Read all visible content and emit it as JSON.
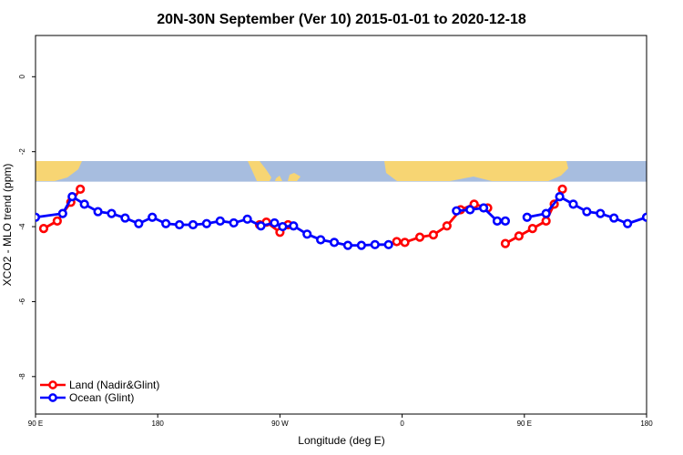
{
  "chart_data": {
    "type": "line",
    "title": "20N-30N September (Ver 10)   2015-01-01 to 2020-12-18",
    "xlabel": "Longitude (deg E)",
    "ylabel": "XCO2 - MLO trend (ppm)",
    "xlim": [
      90,
      540
    ],
    "ylim": [
      -9,
      1.1
    ],
    "x_ticks": [
      {
        "value": 90,
        "label": "90 E"
      },
      {
        "value": 180,
        "label": "180"
      },
      {
        "value": 270,
        "label": "90 W"
      },
      {
        "value": 360,
        "label": "0"
      },
      {
        "value": 450,
        "label": "90 E"
      },
      {
        "value": 540,
        "label": "180"
      }
    ],
    "y_ticks": [
      {
        "value": 0,
        "label": "0"
      },
      {
        "value": -2,
        "label": "-2"
      },
      {
        "value": -4,
        "label": "-4"
      },
      {
        "value": -6,
        "label": "-6"
      },
      {
        "value": -8,
        "label": "-8"
      }
    ],
    "legend_position": "bottom-left",
    "map_strip": {
      "y_top": -2.25,
      "y_bottom": -2.8,
      "ocean_color": "#a7bddf",
      "land_color": "#f7d573"
    },
    "series": [
      {
        "name": "Land (Nadir&Glint)",
        "color": "#ff0000",
        "segments": [
          [
            [
              96,
              -4.05
            ],
            [
              106,
              -3.85
            ],
            [
              116,
              -3.35
            ],
            [
              123,
              -3.0
            ]
          ],
          [
            [
              255,
              -3.95
            ],
            [
              260,
              -3.88
            ],
            [
              270,
              -4.15
            ],
            [
              276,
              -3.95
            ]
          ],
          [
            [
              356,
              -4.4
            ],
            [
              362,
              -4.42
            ],
            [
              373,
              -4.28
            ],
            [
              383,
              -4.22
            ],
            [
              393,
              -3.98
            ],
            [
              403,
              -3.55
            ],
            [
              413,
              -3.4
            ],
            [
              423,
              -3.5
            ]
          ],
          [
            [
              436,
              -4.45
            ],
            [
              446,
              -4.25
            ],
            [
              456,
              -4.05
            ],
            [
              466,
              -3.85
            ],
            [
              472,
              -3.4
            ],
            [
              478,
              -3.0
            ]
          ]
        ]
      },
      {
        "name": "Ocean (Glint)",
        "color": "#0000ff",
        "segments": [
          [
            [
              90,
              -3.75
            ],
            [
              110,
              -3.65
            ],
            [
              117,
              -3.2
            ],
            [
              126,
              -3.4
            ],
            [
              136,
              -3.6
            ],
            [
              146,
              -3.65
            ],
            [
              156,
              -3.77
            ],
            [
              166,
              -3.92
            ],
            [
              176,
              -3.75
            ],
            [
              186,
              -3.92
            ],
            [
              196,
              -3.95
            ],
            [
              206,
              -3.95
            ],
            [
              216,
              -3.92
            ],
            [
              226,
              -3.85
            ],
            [
              236,
              -3.9
            ],
            [
              246,
              -3.8
            ],
            [
              256,
              -3.98
            ],
            [
              266,
              -3.9
            ],
            [
              272,
              -4.0
            ],
            [
              280,
              -3.98
            ],
            [
              290,
              -4.2
            ],
            [
              300,
              -4.35
            ],
            [
              310,
              -4.42
            ],
            [
              320,
              -4.5
            ],
            [
              330,
              -4.5
            ],
            [
              340,
              -4.48
            ],
            [
              350,
              -4.48
            ]
          ],
          [
            [
              400,
              -3.58
            ],
            [
              410,
              -3.55
            ],
            [
              420,
              -3.5
            ],
            [
              430,
              -3.85
            ],
            [
              436,
              -3.85
            ]
          ],
          [
            [
              452,
              -3.75
            ],
            [
              466,
              -3.65
            ],
            [
              476,
              -3.2
            ],
            [
              486,
              -3.4
            ],
            [
              496,
              -3.6
            ],
            [
              506,
              -3.65
            ],
            [
              516,
              -3.77
            ],
            [
              526,
              -3.92
            ],
            [
              540,
              -3.75
            ]
          ]
        ]
      }
    ]
  }
}
